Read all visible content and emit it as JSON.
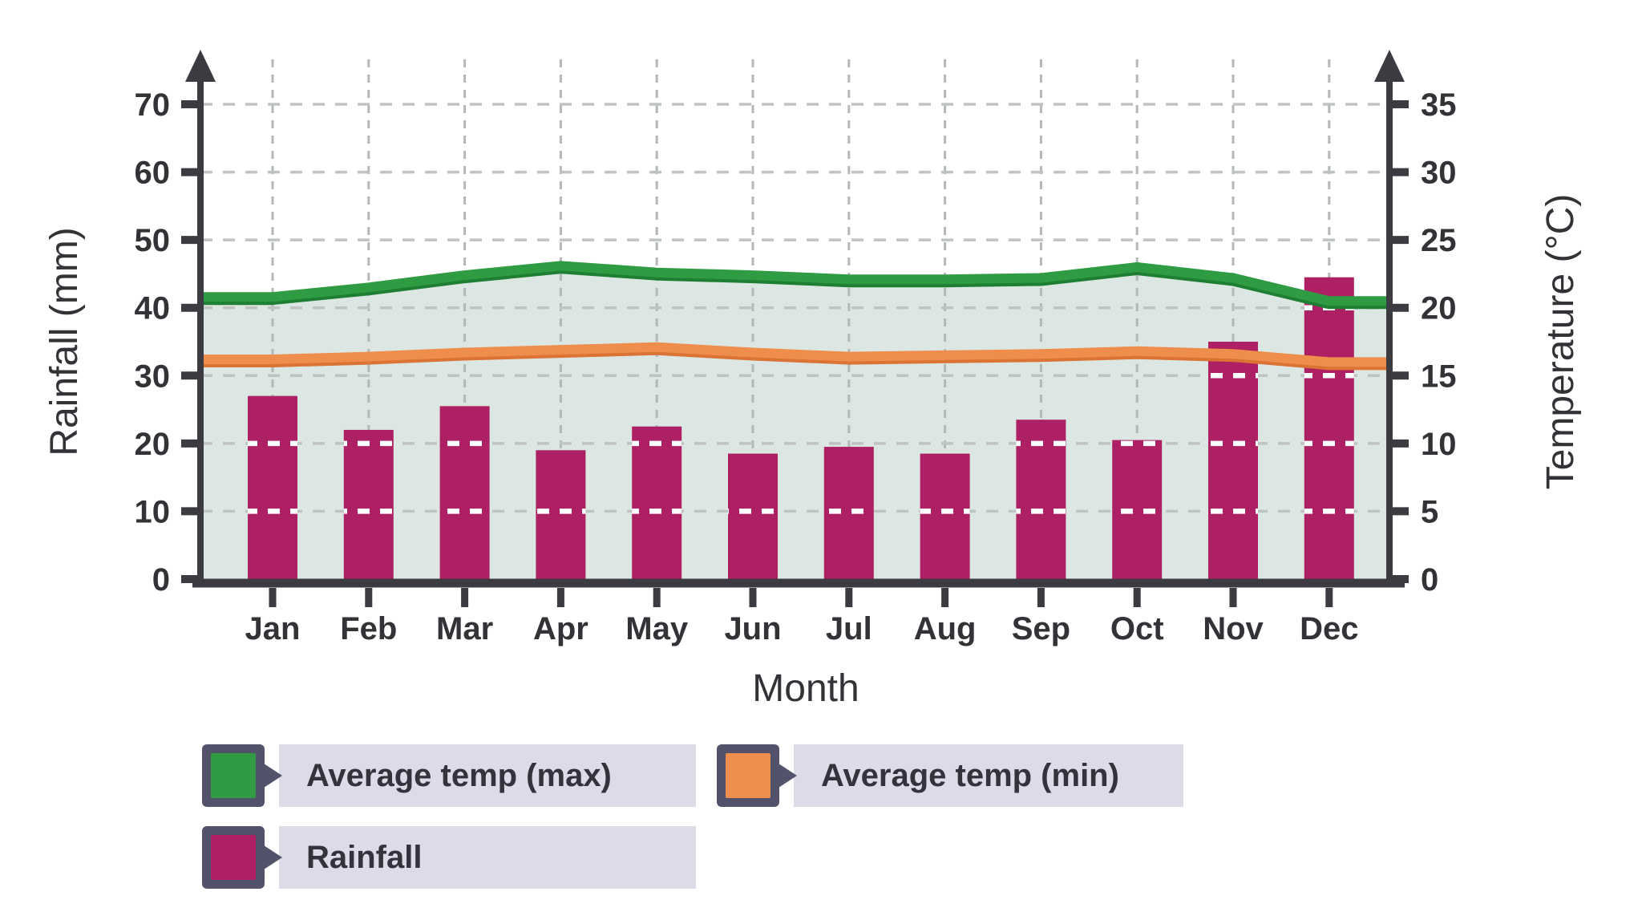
{
  "chart_data": {
    "type": "bar+line",
    "categories": [
      "Jan",
      "Feb",
      "Mar",
      "Apr",
      "May",
      "Jun",
      "Jul",
      "Aug",
      "Sep",
      "Oct",
      "Nov",
      "Dec"
    ],
    "series": [
      {
        "name": "Average temp (max)",
        "type": "line",
        "axis": "temperature",
        "color": "#2f9c44",
        "values": [
          20.8,
          21.5,
          22.4,
          23.1,
          22.6,
          22.4,
          22.1,
          22.1,
          22.2,
          23.0,
          22.2,
          20.5
        ]
      },
      {
        "name": "Average temp (min)",
        "type": "line",
        "axis": "temperature",
        "color": "#ef8d4c",
        "values": [
          16.2,
          16.4,
          16.7,
          16.9,
          17.1,
          16.7,
          16.4,
          16.5,
          16.6,
          16.8,
          16.6,
          16.0
        ]
      },
      {
        "name": "Rainfall",
        "type": "bar",
        "axis": "rainfall",
        "color": "#ad2063",
        "values": [
          27,
          22,
          25.5,
          19,
          22.5,
          18.5,
          19.5,
          18.5,
          23.5,
          20.5,
          35,
          44.5
        ]
      }
    ],
    "xlabel": "Month",
    "left_axis": {
      "label": "Rainfall (mm)",
      "ticks": [
        0,
        10,
        20,
        30,
        40,
        50,
        60,
        70
      ],
      "range": [
        0,
        70
      ]
    },
    "right_axis": {
      "label": "Temperature (°C)",
      "ticks": [
        0,
        5,
        10,
        15,
        20,
        25,
        30,
        35
      ],
      "range": [
        0,
        35
      ]
    },
    "grid": true,
    "legend_position": "bottom",
    "colors": {
      "area_fill": "#dce7e3",
      "grid": "#bfc3c2",
      "axis": "#3b3b41",
      "text": "#323237",
      "legend_swatch_border": "#52526b",
      "legend_label_bg": "#dcdce8"
    }
  }
}
